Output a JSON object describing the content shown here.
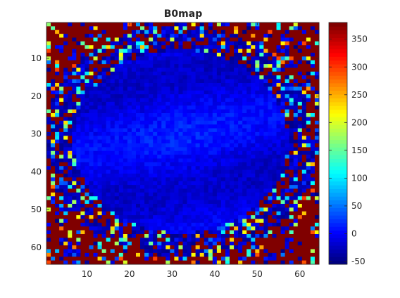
{
  "chart_data": {
    "type": "heatmap",
    "title": "B0map",
    "xlabel": "",
    "ylabel": "",
    "x_range": [
      1,
      64
    ],
    "y_range": [
      1,
      64
    ],
    "y_direction": "reversed",
    "x_ticks": [
      "10",
      "20",
      "30",
      "40",
      "50",
      "60"
    ],
    "y_ticks": [
      "10",
      "20",
      "30",
      "40",
      "50",
      "60"
    ],
    "colormap": "jet",
    "clim": [
      -55,
      380
    ],
    "colorbar_ticks": [
      "-50",
      "0",
      "50",
      "100",
      "150",
      "200",
      "250",
      "300",
      "350"
    ],
    "grid": false,
    "description": "64x64 field map: interior ellipse of low values (about -20 to 30) surrounded by saturated high values (about 380) in the corners and noisy mixed values along the rim",
    "regions": {
      "center": [
        32,
        32
      ],
      "radius_x": 28,
      "radius_y": 27,
      "interior_value_range": [
        -30,
        30
      ],
      "outside_value": 380
    }
  }
}
